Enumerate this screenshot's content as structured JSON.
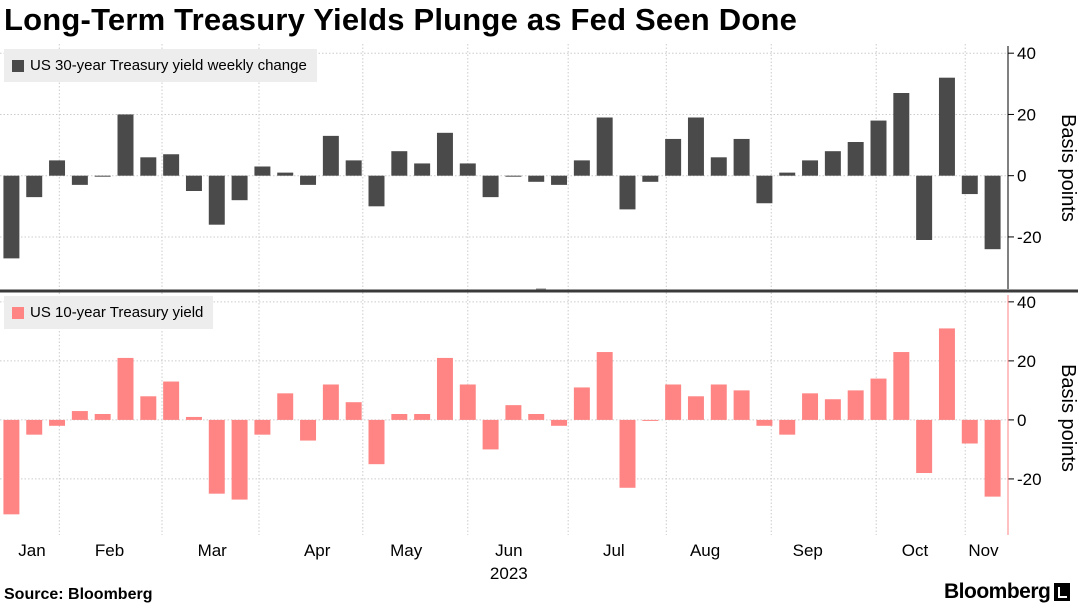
{
  "title": "Long-Term Treasury Yields Plunge as Fed Seen Done",
  "source": "Source: Bloomberg",
  "brand": "Bloomberg",
  "colors": {
    "top_series": "#4a4a4a",
    "bottom_series": "#ff8585",
    "grid": "#cccccc",
    "divider": "#3a3a3a"
  },
  "chart_data": [
    {
      "type": "bar",
      "legend": "US 30-year Treasury yield weekly change",
      "ylabel": "Basis points",
      "ylim": [
        -37,
        43
      ],
      "yticks": [
        -20,
        0,
        20,
        40
      ],
      "values": [
        -27,
        -7,
        5,
        -3,
        0,
        20,
        6,
        7,
        -5,
        -16,
        -8,
        3,
        1,
        -3,
        13,
        5,
        -10,
        8,
        4,
        14,
        4,
        -7,
        0,
        -2,
        -3,
        5,
        19,
        -11,
        -2,
        12,
        19,
        6,
        12,
        -9,
        1,
        5,
        8,
        11,
        18,
        27,
        -21,
        32,
        -6,
        -24
      ]
    },
    {
      "type": "bar",
      "legend": "US 10-year Treasury yield",
      "ylabel": "Basis points",
      "ylim": [
        -39,
        43
      ],
      "yticks": [
        -20,
        0,
        20,
        40
      ],
      "values": [
        -32,
        -5,
        -2,
        3,
        2,
        21,
        8,
        13,
        1,
        -25,
        -27,
        -5,
        9,
        -7,
        12,
        6,
        -15,
        2,
        2,
        21,
        12,
        -10,
        5,
        2,
        -2,
        11,
        23,
        -23,
        0,
        12,
        8,
        12,
        10,
        -2,
        -5,
        9,
        7,
        10,
        14,
        23,
        -18,
        31,
        -8,
        -26
      ]
    }
  ],
  "x_axis": {
    "months": [
      "Jan",
      "Feb",
      "Mar",
      "Apr",
      "May",
      "Jun",
      "Jul",
      "Aug",
      "Sep",
      "Oct",
      "Nov"
    ],
    "year": "2023"
  }
}
